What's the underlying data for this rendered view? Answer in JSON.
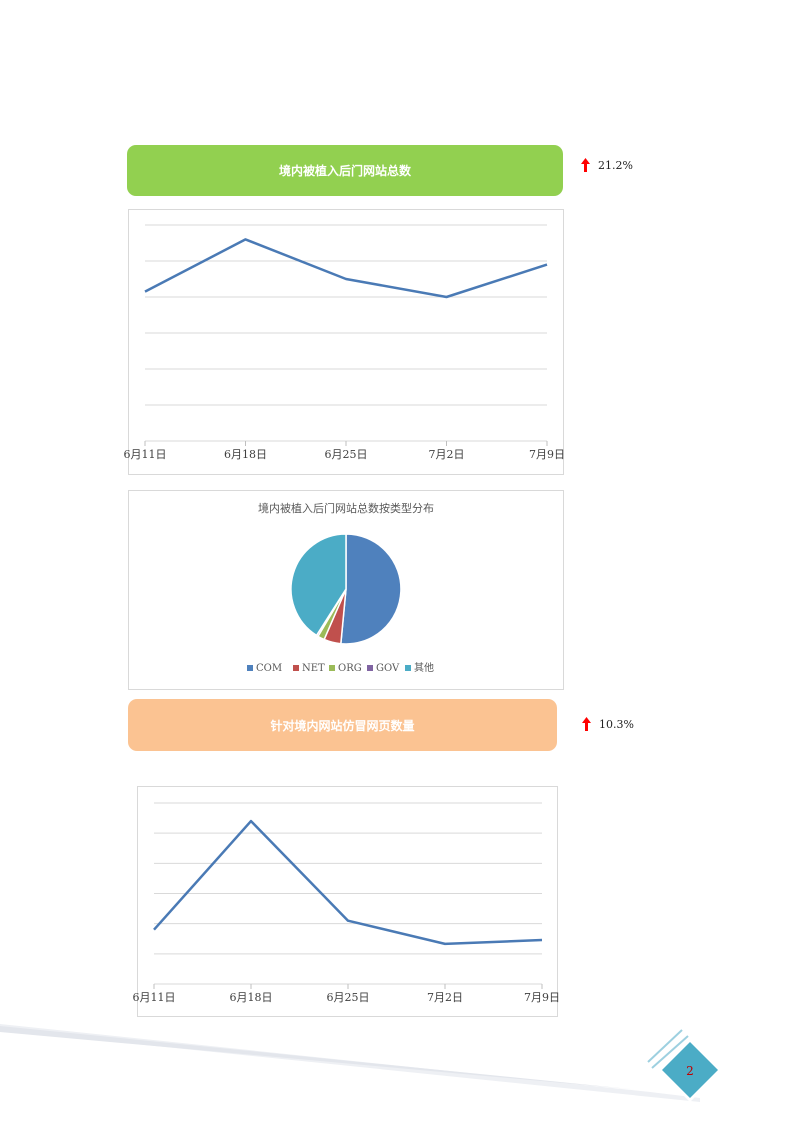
{
  "section1": {
    "title": "境内被植入后门网站总数",
    "change": "21.2%",
    "colors": {
      "banner": "#92d050",
      "arrow": "#ff0000"
    }
  },
  "section2": {
    "title": "针对境内网站仿冒网页数量",
    "change": "10.3%",
    "colors": {
      "banner": "#fbc392",
      "arrow": "#ff0000"
    }
  },
  "chart_data": [
    {
      "type": "line",
      "categories": [
        "6月11日",
        "6月18日",
        "6月25日",
        "7月2日",
        "7月9日"
      ],
      "series": [
        {
          "values": [
            83,
            112,
            90,
            80,
            98
          ],
          "color": "#4a7ab5"
        }
      ],
      "ylim": [
        0,
        120
      ],
      "grid": true,
      "title": "",
      "xlabel": "",
      "ylabel": ""
    },
    {
      "type": "pie",
      "title": "境内被植入后门网站总数按类型分布",
      "labels": [
        "COM",
        "NET",
        "ORG",
        "GOV",
        "其他"
      ],
      "values": [
        51.5,
        5.0,
        2.0,
        0.5,
        41.0
      ],
      "colors": [
        "#4f81bd",
        "#c0504d",
        "#9bbb59",
        "#8064a2",
        "#4bacc6"
      ],
      "legend": "bottom"
    },
    {
      "type": "line",
      "categories": [
        "6月11日",
        "6月18日",
        "6月25日",
        "7月2日",
        "7月9日"
      ],
      "series": [
        {
          "values": [
            2100,
            6300,
            2450,
            1550,
            1700
          ],
          "color": "#4a7ab5"
        }
      ],
      "ylim": [
        0,
        7000
      ],
      "grid": true,
      "title": "",
      "xlabel": "",
      "ylabel": ""
    }
  ],
  "page": {
    "number": "2"
  }
}
